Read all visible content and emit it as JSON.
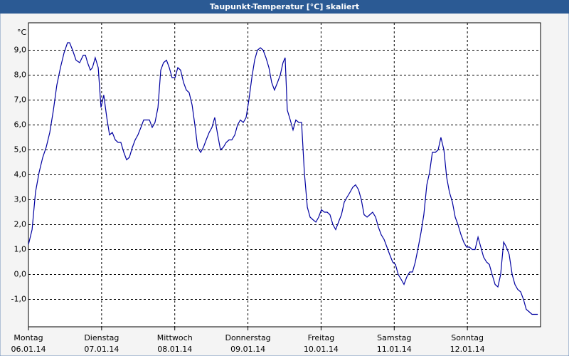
{
  "chart_data": {
    "type": "line",
    "title": "Taupunkt-Temperatur [°C] skaliert",
    "y_unit": "°C",
    "color": "#0000a0",
    "grid": true,
    "xlim": [
      0,
      168
    ],
    "ylim": [
      -2.1,
      10.1
    ],
    "yticks": [
      {
        "value": -1,
        "label": "-1,0"
      },
      {
        "value": 0,
        "label": "0,0"
      },
      {
        "value": 1,
        "label": "1,0"
      },
      {
        "value": 2,
        "label": "2,0"
      },
      {
        "value": 3,
        "label": "3,0"
      },
      {
        "value": 4,
        "label": "4,0"
      },
      {
        "value": 5,
        "label": "5,0"
      },
      {
        "value": 6,
        "label": "6,0"
      },
      {
        "value": 7,
        "label": "7,0"
      },
      {
        "value": 8,
        "label": "8,0"
      },
      {
        "value": 9,
        "label": "9,0"
      }
    ],
    "xticks": [
      {
        "value": 0,
        "label": "Montag",
        "date": "06.01.14"
      },
      {
        "value": 24,
        "label": "Dienstag",
        "date": "07.01.14"
      },
      {
        "value": 48,
        "label": "Mittwoch",
        "date": "08.01.14"
      },
      {
        "value": 72,
        "label": "Donnerstag",
        "date": "09.01.14"
      },
      {
        "value": 96,
        "label": "Freitag",
        "date": "10.01.14"
      },
      {
        "value": 120,
        "label": "Samstag",
        "date": "11.01.14"
      },
      {
        "value": 144,
        "label": "Sonntag",
        "date": "12.01.14"
      }
    ],
    "x": [
      0,
      1.2,
      2.3,
      3.5,
      4.7,
      5.8,
      7.0,
      8.2,
      9.3,
      10.5,
      11.7,
      12.8,
      13.5,
      14.5,
      15.6,
      16.8,
      18.0,
      18.7,
      19.4,
      20.3,
      21.0,
      21.9,
      22.9,
      23.8,
      24.7,
      25.7,
      26.6,
      27.5,
      28.5,
      29.4,
      30.3,
      31.3,
      32.2,
      33.1,
      34.1,
      35.0,
      35.9,
      36.9,
      37.8,
      38.7,
      39.7,
      40.6,
      41.5,
      42.5,
      43.4,
      44.3,
      45.3,
      46.2,
      47.1,
      48.1,
      49.0,
      49.9,
      50.9,
      51.8,
      52.7,
      53.7,
      54.6,
      55.5,
      56.5,
      57.4,
      58.3,
      59.3,
      60.2,
      61.1,
      62.1,
      63.0,
      63.9,
      64.9,
      65.8,
      66.7,
      67.7,
      68.6,
      69.5,
      70.5,
      71.4,
      72.3,
      73.3,
      74.2,
      75.1,
      76.1,
      77.0,
      77.9,
      78.9,
      79.8,
      80.7,
      81.7,
      82.6,
      83.5,
      84.2,
      84.9,
      85.9,
      86.8,
      87.7,
      88.7,
      89.6,
      90.5,
      91.5,
      92.4,
      93.3,
      94.3,
      95.2,
      96.1,
      97.1,
      98.0,
      98.9,
      99.9,
      100.8,
      101.7,
      102.7,
      103.6,
      104.5,
      105.5,
      106.4,
      107.3,
      108.3,
      109.2,
      110.1,
      111.1,
      112.0,
      112.9,
      113.9,
      114.8,
      115.7,
      116.7,
      117.6,
      118.5,
      119.5,
      120.4,
      121.3,
      122.3,
      123.2,
      124.1,
      125.1,
      126.0,
      126.9,
      127.9,
      128.8,
      129.7,
      130.7,
      131.6,
      132.5,
      133.5,
      134.4,
      135.3,
      136.3,
      137.2,
      138.1,
      139.1,
      140.0,
      140.9,
      141.9,
      142.8,
      143.7,
      144.7,
      145.6,
      146.5,
      147.5,
      148.4,
      149.3,
      150.3,
      151.2,
      152.1,
      153.1,
      154.0,
      154.9,
      155.9,
      156.8,
      157.7,
      158.7,
      159.6,
      160.5,
      161.5,
      162.4,
      163.3,
      164.3,
      165.2,
      166.1,
      167.1
    ],
    "values": [
      1.2,
      1.8,
      3.3,
      4.1,
      4.7,
      5.1,
      5.7,
      6.6,
      7.6,
      8.3,
      8.9,
      9.3,
      9.3,
      9.0,
      8.6,
      8.5,
      8.8,
      8.8,
      8.5,
      8.2,
      8.3,
      8.7,
      8.3,
      6.7,
      7.2,
      6.3,
      5.6,
      5.7,
      5.4,
      5.3,
      5.3,
      4.9,
      4.6,
      4.7,
      5.1,
      5.4,
      5.6,
      5.9,
      6.2,
      6.2,
      6.2,
      5.9,
      6.1,
      6.7,
      8.2,
      8.5,
      8.6,
      8.3,
      7.9,
      7.9,
      8.3,
      8.2,
      7.7,
      7.4,
      7.3,
      6.8,
      6.0,
      5.1,
      4.9,
      5.1,
      5.4,
      5.7,
      5.9,
      6.3,
      5.6,
      5.0,
      5.1,
      5.3,
      5.4,
      5.4,
      5.6,
      6.0,
      6.2,
      6.1,
      6.3,
      7.0,
      7.9,
      8.6,
      9.0,
      9.1,
      9.0,
      8.7,
      8.3,
      7.7,
      7.4,
      7.7,
      8.0,
      8.5,
      8.7,
      6.6,
      6.2,
      5.8,
      6.2,
      6.1,
      6.1,
      4.1,
      2.7,
      2.3,
      2.2,
      2.1,
      2.3,
      2.6,
      2.5,
      2.5,
      2.4,
      2.0,
      1.8,
      2.1,
      2.4,
      2.9,
      3.1,
      3.3,
      3.5,
      3.6,
      3.4,
      3.0,
      2.4,
      2.3,
      2.4,
      2.5,
      2.3,
      1.9,
      1.6,
      1.4,
      1.1,
      0.8,
      0.5,
      0.4,
      0.0,
      -0.2,
      -0.4,
      -0.1,
      0.1,
      0.1,
      0.5,
      1.1,
      1.7,
      2.4,
      3.6,
      4.1,
      4.9,
      4.9,
      5.0,
      5.5,
      5.0,
      3.9,
      3.3,
      2.9,
      2.3,
      2.0,
      1.6,
      1.3,
      1.1,
      1.1,
      1.0,
      1.0,
      1.5,
      1.1,
      0.7,
      0.5,
      0.4,
      0.0,
      -0.4,
      -0.5,
      0.0,
      1.3,
      1.1,
      0.8,
      0.0,
      -0.4,
      -0.6,
      -0.7,
      -1.0,
      -1.4,
      -1.5,
      -1.6,
      -1.6,
      -1.6
    ]
  }
}
